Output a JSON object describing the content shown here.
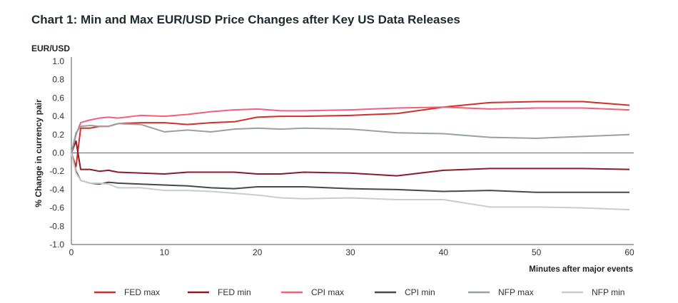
{
  "title": "Chart 1: Min and Max EUR/USD Price Changes after Key US Data Releases",
  "chart_data": {
    "type": "line",
    "title": "Chart 1: Min and Max EUR/USD Price Changes after Key US Data Releases",
    "unit_label": "EUR/USD",
    "xlabel": "Minutes after major events",
    "ylabel": "% Change in currency pair",
    "xlim": [
      0,
      60
    ],
    "ylim": [
      -1.0,
      1.0
    ],
    "xticks": [
      0,
      10,
      20,
      30,
      40,
      50,
      60
    ],
    "yticks": [
      1.0,
      0.8,
      0.6,
      0.4,
      0.2,
      0.0,
      -0.2,
      -0.4,
      -0.6,
      -0.8,
      -1.0
    ],
    "ytick_labels": [
      "1.0",
      "0.8",
      "0.6",
      "0.4",
      "0.2",
      "0.0",
      "-0.2",
      "-0.4",
      "-0.6",
      "-0.8",
      "-1.0"
    ],
    "zero_line": true,
    "grid": false,
    "legend_position": "bottom",
    "x": [
      0,
      0.5,
      1,
      2,
      3,
      4,
      5,
      7.5,
      10,
      12.5,
      15,
      17.5,
      20,
      22.5,
      25,
      30,
      35,
      40,
      45,
      50,
      55,
      60
    ],
    "series": [
      {
        "name": "FED max",
        "color": "#d0302a",
        "values": [
          0,
          -0.15,
          0.27,
          0.27,
          0.29,
          0.29,
          0.32,
          0.33,
          0.33,
          0.31,
          0.33,
          0.34,
          0.39,
          0.4,
          0.4,
          0.41,
          0.43,
          0.5,
          0.55,
          0.56,
          0.56,
          0.52
        ]
      },
      {
        "name": "FED min",
        "color": "#8b1a2b",
        "values": [
          0,
          0.13,
          -0.18,
          -0.18,
          -0.2,
          -0.19,
          -0.21,
          -0.22,
          -0.23,
          -0.21,
          -0.21,
          -0.21,
          -0.23,
          -0.23,
          -0.21,
          -0.22,
          -0.25,
          -0.19,
          -0.17,
          -0.17,
          -0.17,
          -0.18
        ]
      },
      {
        "name": "CPI max",
        "color": "#f0607a",
        "values": [
          0,
          0.2,
          0.33,
          0.36,
          0.38,
          0.39,
          0.38,
          0.41,
          0.4,
          0.42,
          0.45,
          0.47,
          0.48,
          0.46,
          0.46,
          0.47,
          0.49,
          0.5,
          0.48,
          0.49,
          0.49,
          0.47
        ]
      },
      {
        "name": "CPI min",
        "color": "#444a4a",
        "values": [
          0,
          -0.2,
          -0.3,
          -0.33,
          -0.34,
          -0.32,
          -0.33,
          -0.34,
          -0.35,
          -0.36,
          -0.38,
          -0.39,
          -0.37,
          -0.37,
          -0.37,
          -0.39,
          -0.4,
          -0.42,
          -0.41,
          -0.43,
          -0.43,
          -0.43
        ]
      },
      {
        "name": "NFP max",
        "color": "#98a0a0",
        "values": [
          0,
          0.22,
          0.29,
          0.3,
          0.29,
          0.29,
          0.32,
          0.31,
          0.23,
          0.25,
          0.23,
          0.26,
          0.27,
          0.26,
          0.27,
          0.26,
          0.22,
          0.21,
          0.17,
          0.16,
          0.18,
          0.2
        ]
      },
      {
        "name": "NFP min",
        "color": "#c8cccc",
        "values": [
          0,
          -0.22,
          -0.3,
          -0.33,
          -0.33,
          -0.34,
          -0.38,
          -0.38,
          -0.41,
          -0.41,
          -0.42,
          -0.44,
          -0.46,
          -0.49,
          -0.5,
          -0.49,
          -0.51,
          -0.51,
          -0.59,
          -0.59,
          -0.6,
          -0.62
        ]
      }
    ]
  }
}
